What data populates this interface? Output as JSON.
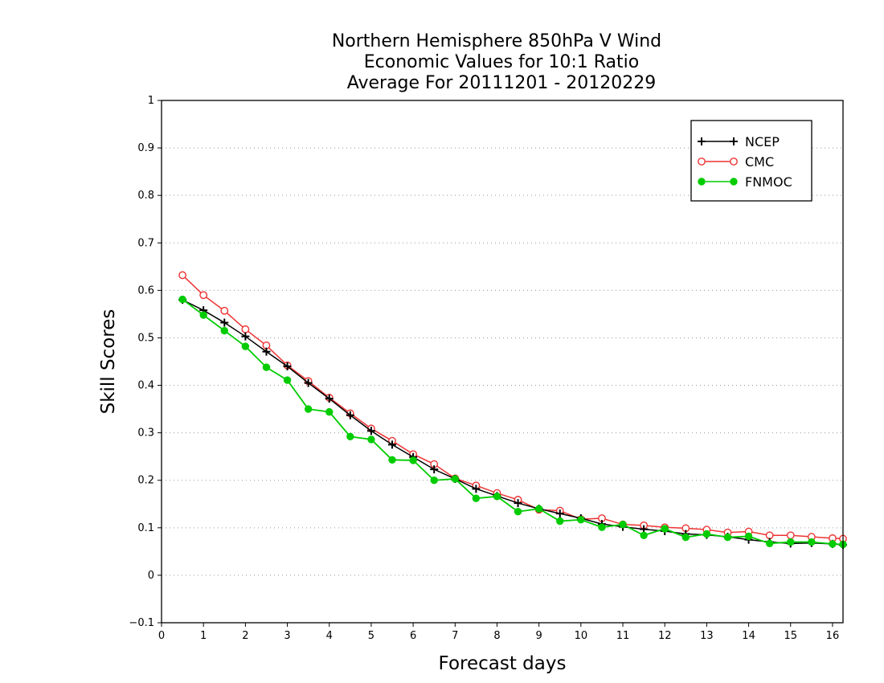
{
  "chart_data": {
    "type": "line",
    "title": [
      "Northern Hemisphere 850hPa V Wind",
      "Economic Values for 10:1 Ratio",
      "Average For 20111201 - 20120229"
    ],
    "xlabel": "Forecast days",
    "ylabel": "Skill Scores",
    "xlim": [
      0,
      16.25
    ],
    "ylim": [
      -0.1,
      1
    ],
    "xticks": [
      0,
      1,
      2,
      3,
      4,
      5,
      6,
      7,
      8,
      9,
      10,
      11,
      12,
      13,
      14,
      15,
      16
    ],
    "xtick_labels": [
      "0",
      "1",
      "2",
      "3",
      "4",
      "5",
      "6",
      "7",
      "8",
      "9",
      "10",
      "11",
      "12",
      "13",
      "14",
      "15",
      "16"
    ],
    "yticks": [
      -0.1,
      0,
      0.1,
      0.2,
      0.3,
      0.4,
      0.5,
      0.6,
      0.7,
      0.8,
      0.9,
      1
    ],
    "ytick_labels": [
      "−0.1",
      "0",
      "0.1",
      "0.2",
      "0.3",
      "0.4",
      "0.5",
      "0.6",
      "0.7",
      "0.8",
      "0.9",
      "1"
    ],
    "grid": "horizontal dotted",
    "legend_position": "top-right",
    "x": [
      0.5,
      1,
      1.5,
      2,
      2.5,
      3,
      3.5,
      4,
      4.5,
      5,
      5.5,
      6,
      6.5,
      7,
      7.5,
      8,
      8.5,
      9,
      9.5,
      10,
      10.5,
      11,
      11.5,
      12,
      12.5,
      13,
      13.5,
      14,
      14.5,
      15,
      15.5,
      16,
      16.25
    ],
    "series": [
      {
        "name": "NCEP",
        "color": "#000000",
        "marker": "plus",
        "values": [
          0.58,
          0.558,
          0.532,
          0.503,
          0.471,
          0.44,
          0.405,
          0.372,
          0.337,
          0.304,
          0.275,
          0.249,
          0.223,
          0.203,
          0.182,
          0.167,
          0.152,
          0.14,
          0.13,
          0.12,
          0.108,
          0.102,
          0.097,
          0.093,
          0.087,
          0.085,
          0.081,
          0.075,
          0.07,
          0.067,
          0.068,
          0.066,
          0.064
        ]
      },
      {
        "name": "CMC",
        "color": "#ee3333",
        "marker": "open-circle",
        "values": [
          0.632,
          0.59,
          0.557,
          0.518,
          0.484,
          0.442,
          0.409,
          0.374,
          0.341,
          0.309,
          0.283,
          0.255,
          0.234,
          0.204,
          0.189,
          0.173,
          0.159,
          0.138,
          0.136,
          0.118,
          0.12,
          0.107,
          0.105,
          0.101,
          0.099,
          0.096,
          0.09,
          0.092,
          0.084,
          0.084,
          0.081,
          0.078,
          0.077
        ]
      },
      {
        "name": "FNMOC",
        "color": "#00cc00",
        "marker": "filled-circle",
        "values": [
          0.581,
          0.548,
          0.515,
          0.482,
          0.438,
          0.411,
          0.35,
          0.344,
          0.292,
          0.286,
          0.243,
          0.242,
          0.2,
          0.203,
          0.162,
          0.166,
          0.134,
          0.14,
          0.114,
          0.117,
          0.101,
          0.107,
          0.084,
          0.098,
          0.08,
          0.087,
          0.08,
          0.082,
          0.067,
          0.07,
          0.07,
          0.066,
          0.065
        ]
      }
    ]
  }
}
